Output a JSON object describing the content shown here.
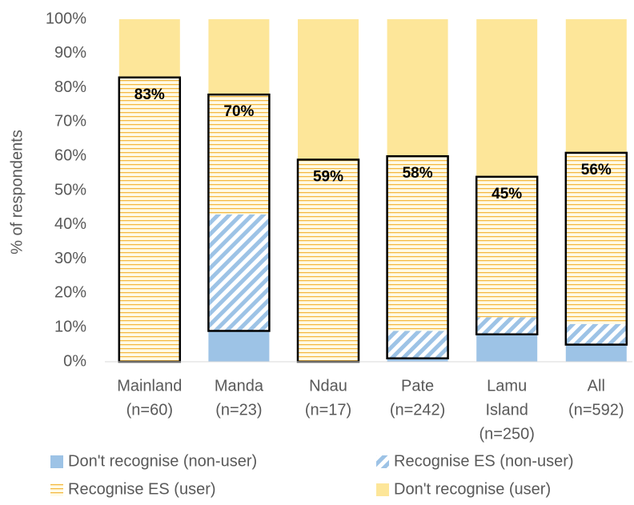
{
  "chart_data": {
    "type": "stacked_bar",
    "y_axis_label": "% of respondents",
    "categories": [
      [
        "Mainland",
        "(n=60)"
      ],
      [
        "Manda",
        "(n=23)"
      ],
      [
        "Ndau",
        "(n=17)"
      ],
      [
        "Pate",
        "(n=242)"
      ],
      [
        "Lamu",
        "Island",
        "(n=250)"
      ],
      [
        "All",
        "(n=592)"
      ]
    ],
    "series": [
      {
        "name": "Don't recognise (non-user)",
        "color": "#9dc3e6",
        "pattern": "solid",
        "values": [
          0,
          9,
          0,
          1,
          8,
          5
        ]
      },
      {
        "name": "Recognise ES (non-user)",
        "color": "#9dc3e6",
        "pattern": "hatch",
        "values": [
          0,
          34,
          0,
          8,
          5,
          6
        ]
      },
      {
        "name": "Recognise ES (user)",
        "color": "#f4b942",
        "pattern": "hstripe",
        "values": [
          83,
          35,
          59,
          51,
          41,
          50
        ]
      },
      {
        "name": "Don't recognise (user)",
        "color": "#fde699",
        "pattern": "solid",
        "values": [
          17,
          22,
          41,
          40,
          46,
          39
        ]
      }
    ],
    "bar_labels": [
      "83%",
      "70%",
      "59%",
      "58%",
      "45%",
      "56%"
    ],
    "ylim": [
      0,
      100
    ],
    "yticks": [
      {
        "value": 0,
        "label": "0%"
      },
      {
        "value": 10,
        "label": "10%"
      },
      {
        "value": 20,
        "label": "20%"
      },
      {
        "value": 30,
        "label": "30%"
      },
      {
        "value": 40,
        "label": "40%"
      },
      {
        "value": 50,
        "label": "50%"
      },
      {
        "value": 60,
        "label": "60%"
      },
      {
        "value": 70,
        "label": "70%"
      },
      {
        "value": 80,
        "label": "80%"
      },
      {
        "value": 90,
        "label": "90%"
      },
      {
        "value": 100,
        "label": "100%"
      }
    ],
    "legend": "bottom"
  }
}
